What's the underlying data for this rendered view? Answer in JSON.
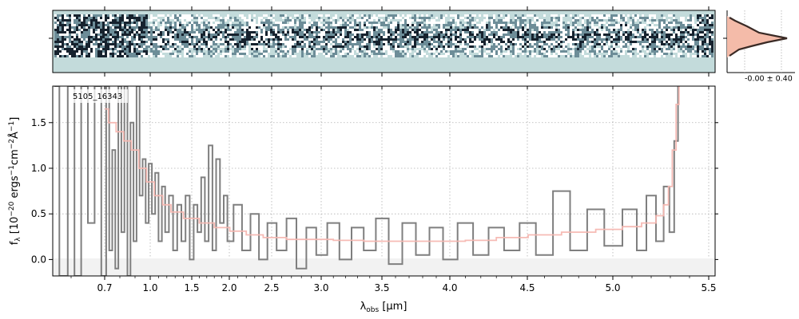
{
  "chart_data": [
    {
      "panel": "spectrum-2d",
      "type": "heatmap",
      "colormap": [
        "#c3dbdb",
        "#ffffff",
        "#6d8d98",
        "#16222e"
      ],
      "background": "#c3dbdb"
    },
    {
      "panel": "profile",
      "type": "line",
      "annotation": "-0.00 ± 0.40",
      "colors": {
        "profile": "#3a2a25",
        "fill": "#f4bba9"
      }
    },
    {
      "panel": "spectrum-1d",
      "type": "line",
      "object_label": "5105_16343",
      "xlabel": "λobs [µm]",
      "ylabel": "fλ [10^-20 ergs^-1cm^-2Å^-1]",
      "x_scale": "nonlinear (wavelength ticks as shown)",
      "ylim": [
        -0.18,
        1.9
      ],
      "grid": true,
      "x_ticks": [
        "0.7",
        "1.0",
        "1.5",
        "2.0",
        "2.5",
        "3.0",
        "3.5",
        "4.0",
        "4.5",
        "5.0",
        "5.5"
      ],
      "y_ticks": [
        "0.0",
        "0.5",
        "1.0",
        "1.5"
      ],
      "y_tick_values": [
        0.0,
        0.5,
        1.0,
        1.5
      ],
      "colors": {
        "data": "#7f7f7f",
        "model": "#f6b7b1",
        "grid": "#b0b0b0"
      },
      "series": [
        {
          "role": "model",
          "points": [
            [
              0.7,
              1.65
            ],
            [
              0.75,
              1.5
            ],
            [
              0.8,
              1.4
            ],
            [
              0.85,
              1.3
            ],
            [
              0.9,
              1.2
            ],
            [
              0.95,
              1.0
            ],
            [
              1.0,
              0.85
            ],
            [
              1.1,
              0.7
            ],
            [
              1.2,
              0.6
            ],
            [
              1.3,
              0.52
            ],
            [
              1.5,
              0.45
            ],
            [
              1.7,
              0.4
            ],
            [
              1.9,
              0.35
            ],
            [
              2.1,
              0.31
            ],
            [
              2.3,
              0.27
            ],
            [
              2.5,
              0.24
            ],
            [
              2.8,
              0.22
            ],
            [
              3.0,
              0.22
            ],
            [
              3.2,
              0.21
            ],
            [
              3.5,
              0.2
            ],
            [
              3.8,
              0.2
            ],
            [
              4.0,
              0.2
            ],
            [
              4.2,
              0.21
            ],
            [
              4.4,
              0.24
            ],
            [
              4.6,
              0.27
            ],
            [
              4.8,
              0.3
            ],
            [
              5.0,
              0.33
            ],
            [
              5.1,
              0.36
            ],
            [
              5.2,
              0.4
            ],
            [
              5.25,
              0.48
            ],
            [
              5.28,
              0.6
            ],
            [
              5.3,
              0.8
            ],
            [
              5.32,
              1.2
            ],
            [
              5.34,
              1.7
            ],
            [
              5.35,
              1.9
            ]
          ]
        },
        {
          "role": "data",
          "points": [
            [
              0.55,
              1.9
            ],
            [
              0.58,
              -0.18
            ],
            [
              0.6,
              1.9
            ],
            [
              0.62,
              -0.18
            ],
            [
              0.64,
              1.9
            ],
            [
              0.66,
              0.4
            ],
            [
              0.68,
              1.9
            ],
            [
              0.7,
              -0.18
            ],
            [
              0.72,
              1.9
            ],
            [
              0.74,
              0.1
            ],
            [
              0.76,
              1.2
            ],
            [
              0.78,
              -0.1
            ],
            [
              0.8,
              1.9
            ],
            [
              0.82,
              0.3
            ],
            [
              0.84,
              1.9
            ],
            [
              0.86,
              -0.18
            ],
            [
              0.88,
              1.5
            ],
            [
              0.9,
              0.2
            ],
            [
              0.92,
              1.9
            ],
            [
              0.94,
              0.7
            ],
            [
              0.96,
              1.1
            ],
            [
              0.98,
              0.4
            ],
            [
              1.0,
              1.05
            ],
            [
              1.04,
              0.5
            ],
            [
              1.08,
              0.95
            ],
            [
              1.12,
              0.2
            ],
            [
              1.16,
              0.8
            ],
            [
              1.2,
              0.3
            ],
            [
              1.25,
              0.7
            ],
            [
              1.3,
              0.1
            ],
            [
              1.35,
              0.6
            ],
            [
              1.4,
              0.2
            ],
            [
              1.45,
              0.7
            ],
            [
              1.5,
              0.0
            ],
            [
              1.55,
              0.6
            ],
            [
              1.6,
              0.3
            ],
            [
              1.65,
              0.9
            ],
            [
              1.7,
              0.2
            ],
            [
              1.75,
              1.25
            ],
            [
              1.8,
              0.1
            ],
            [
              1.85,
              1.1
            ],
            [
              1.9,
              0.4
            ],
            [
              1.95,
              0.7
            ],
            [
              2.0,
              0.2
            ],
            [
              2.1,
              0.6
            ],
            [
              2.2,
              0.1
            ],
            [
              2.3,
              0.5
            ],
            [
              2.4,
              0.0
            ],
            [
              2.5,
              0.4
            ],
            [
              2.6,
              0.1
            ],
            [
              2.7,
              0.45
            ],
            [
              2.8,
              -0.1
            ],
            [
              2.9,
              0.35
            ],
            [
              3.0,
              0.05
            ],
            [
              3.1,
              0.4
            ],
            [
              3.2,
              0.0
            ],
            [
              3.3,
              0.35
            ],
            [
              3.4,
              0.1
            ],
            [
              3.5,
              0.45
            ],
            [
              3.6,
              -0.05
            ],
            [
              3.7,
              0.4
            ],
            [
              3.8,
              0.05
            ],
            [
              3.9,
              0.35
            ],
            [
              4.0,
              0.0
            ],
            [
              4.1,
              0.4
            ],
            [
              4.2,
              0.05
            ],
            [
              4.3,
              0.35
            ],
            [
              4.4,
              0.1
            ],
            [
              4.5,
              0.4
            ],
            [
              4.6,
              0.05
            ],
            [
              4.7,
              0.75
            ],
            [
              4.8,
              0.1
            ],
            [
              4.9,
              0.55
            ],
            [
              5.0,
              0.15
            ],
            [
              5.1,
              0.55
            ],
            [
              5.15,
              0.1
            ],
            [
              5.2,
              0.7
            ],
            [
              5.25,
              0.2
            ],
            [
              5.28,
              0.8
            ],
            [
              5.31,
              0.3
            ],
            [
              5.33,
              1.3
            ],
            [
              5.35,
              1.9
            ]
          ]
        }
      ]
    }
  ]
}
